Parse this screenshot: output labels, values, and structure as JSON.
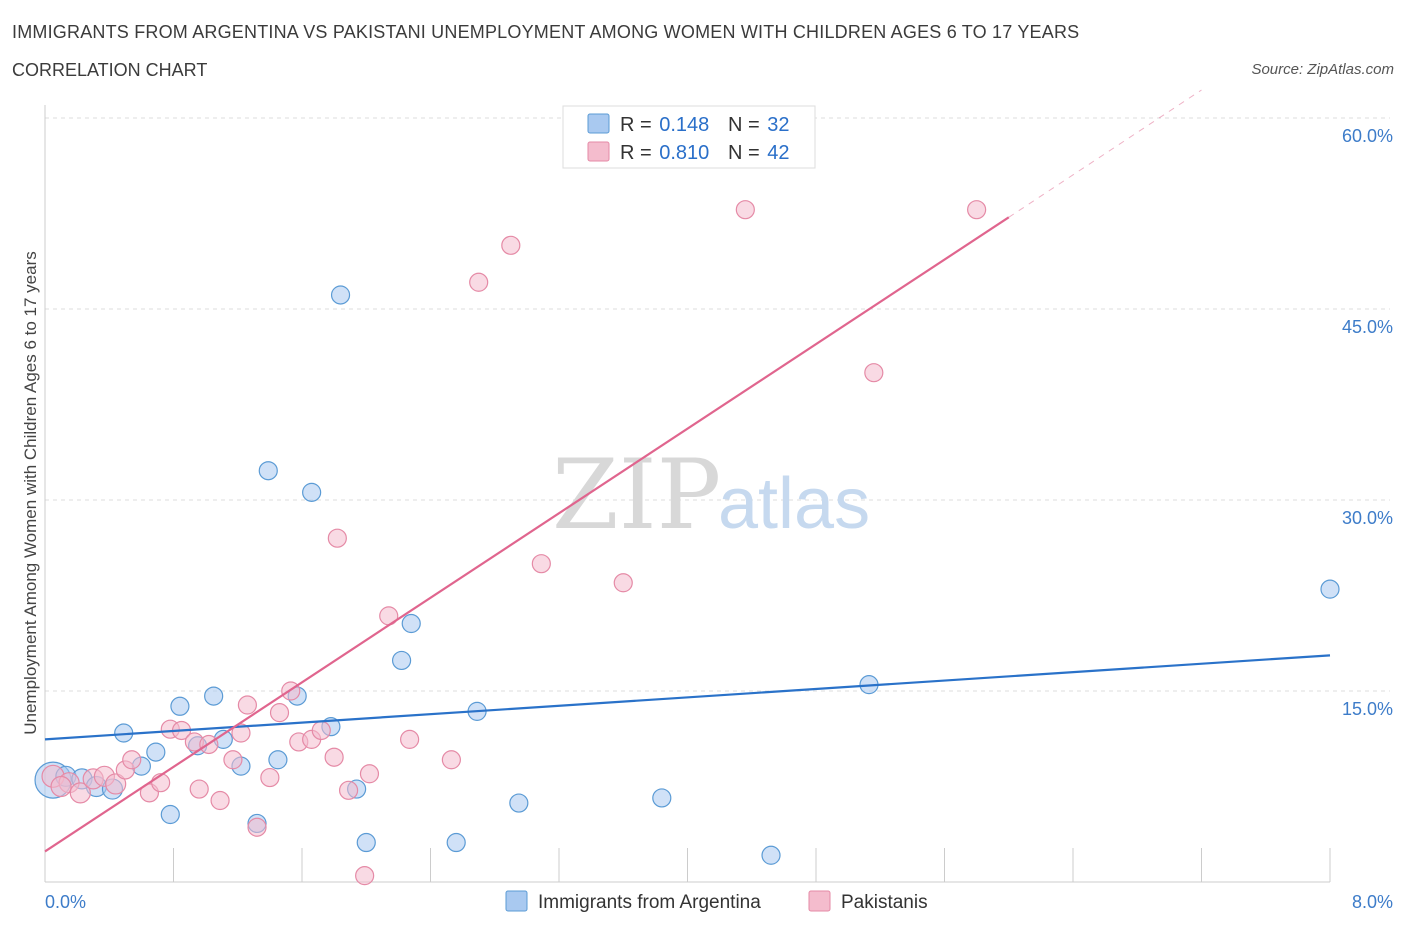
{
  "header": {
    "title": "IMMIGRANTS FROM ARGENTINA VS PAKISTANI UNEMPLOYMENT AMONG WOMEN WITH CHILDREN AGES 6 TO 17 YEARS",
    "subtitle": "CORRELATION CHART",
    "source": "Source: ZipAtlas.com"
  },
  "watermark": {
    "zip": "ZIP",
    "atlas": "atlas"
  },
  "colors": {
    "blue": "#5b9bd5",
    "blue_fill": "#a9c9f0",
    "blue_line": "#2a72c9",
    "pink": "#e58aa6",
    "pink_fill": "#f4bccd",
    "pink_line": "#e0658e",
    "grid": "#dddddd",
    "axis_text": "#3d7cc9"
  },
  "legend": {
    "rows": [
      {
        "r_label": "R = ",
        "r_value": "0.148",
        "n_label": "N = ",
        "n_value": "32"
      },
      {
        "r_label": "R = ",
        "r_value": "0.810",
        "n_label": "N = ",
        "n_value": "42"
      }
    ]
  },
  "chart_data": {
    "type": "scatter",
    "title": "IMMIGRANTS FROM ARGENTINA VS PAKISTANI UNEMPLOYMENT AMONG WOMEN WITH CHILDREN AGES 6 TO 17 YEARS",
    "xlabel": "",
    "ylabel": "Unemployment Among Women with Children Ages 6 to 17 years",
    "xlim": [
      0,
      8
    ],
    "ylim": [
      0,
      60
    ],
    "x_tick_labels": [
      "0.0%",
      "8.0%"
    ],
    "y_ticks": [
      15,
      30,
      45,
      60
    ],
    "y_tick_labels": [
      "15.0%",
      "30.0%",
      "45.0%",
      "60.0%"
    ],
    "grid": true,
    "legend_position": "top-center",
    "series": [
      {
        "name": "Immigrants from Argentina",
        "color": "blue",
        "r": 0.148,
        "n": 32,
        "trend": {
          "x": [
            0,
            8
          ],
          "y": [
            11.2,
            17.8
          ]
        },
        "points": [
          {
            "x": 0.05,
            "y": 8.0,
            "s": 18
          },
          {
            "x": 0.13,
            "y": 8.3,
            "s": 10
          },
          {
            "x": 0.23,
            "y": 8.1,
            "s": 10
          },
          {
            "x": 0.32,
            "y": 7.5,
            "s": 10
          },
          {
            "x": 0.42,
            "y": 7.3,
            "s": 10
          },
          {
            "x": 0.49,
            "y": 11.7,
            "s": 9
          },
          {
            "x": 0.6,
            "y": 9.1,
            "s": 9
          },
          {
            "x": 0.69,
            "y": 10.2,
            "s": 9
          },
          {
            "x": 0.78,
            "y": 5.3,
            "s": 9
          },
          {
            "x": 0.84,
            "y": 13.8,
            "s": 9
          },
          {
            "x": 0.95,
            "y": 10.7,
            "s": 9
          },
          {
            "x": 1.05,
            "y": 14.6,
            "s": 9
          },
          {
            "x": 1.11,
            "y": 11.2,
            "s": 9
          },
          {
            "x": 1.22,
            "y": 9.1,
            "s": 9
          },
          {
            "x": 1.32,
            "y": 4.6,
            "s": 9
          },
          {
            "x": 1.39,
            "y": 32.3,
            "s": 9
          },
          {
            "x": 1.45,
            "y": 9.6,
            "s": 9
          },
          {
            "x": 1.57,
            "y": 14.6,
            "s": 9
          },
          {
            "x": 1.66,
            "y": 30.6,
            "s": 9
          },
          {
            "x": 1.78,
            "y": 12.2,
            "s": 9
          },
          {
            "x": 1.84,
            "y": 46.1,
            "s": 9
          },
          {
            "x": 1.94,
            "y": 7.3,
            "s": 9
          },
          {
            "x": 2.0,
            "y": 3.1,
            "s": 9
          },
          {
            "x": 2.22,
            "y": 17.4,
            "s": 9
          },
          {
            "x": 2.28,
            "y": 20.3,
            "s": 9
          },
          {
            "x": 2.56,
            "y": 3.1,
            "s": 9
          },
          {
            "x": 2.69,
            "y": 13.4,
            "s": 9
          },
          {
            "x": 2.95,
            "y": 6.2,
            "s": 9
          },
          {
            "x": 3.84,
            "y": 6.6,
            "s": 9
          },
          {
            "x": 4.52,
            "y": 2.1,
            "s": 9
          },
          {
            "x": 5.13,
            "y": 15.5,
            "s": 9
          },
          {
            "x": 8.0,
            "y": 23.0,
            "s": 9
          }
        ]
      },
      {
        "name": "Pakistanis",
        "color": "pink",
        "r": 0.81,
        "n": 42,
        "trend": {
          "x": [
            0,
            6.0
          ],
          "y": [
            2.4,
            52.2
          ]
        },
        "trend_dashed": {
          "x": [
            6.0,
            7.2
          ],
          "y": [
            52.2,
            62.2
          ]
        },
        "points": [
          {
            "x": 0.05,
            "y": 8.3,
            "s": 11
          },
          {
            "x": 0.15,
            "y": 7.8,
            "s": 10
          },
          {
            "x": 0.22,
            "y": 7.0,
            "s": 10
          },
          {
            "x": 0.3,
            "y": 8.1,
            "s": 10
          },
          {
            "x": 0.37,
            "y": 8.3,
            "s": 10
          },
          {
            "x": 0.44,
            "y": 7.7,
            "s": 10
          },
          {
            "x": 0.5,
            "y": 8.8,
            "s": 9
          },
          {
            "x": 0.54,
            "y": 9.6,
            "s": 9
          },
          {
            "x": 0.65,
            "y": 7.0,
            "s": 9
          },
          {
            "x": 0.72,
            "y": 7.8,
            "s": 9
          },
          {
            "x": 0.78,
            "y": 12.0,
            "s": 9
          },
          {
            "x": 0.85,
            "y": 11.9,
            "s": 9
          },
          {
            "x": 0.93,
            "y": 11.0,
            "s": 9
          },
          {
            "x": 0.96,
            "y": 7.3,
            "s": 9
          },
          {
            "x": 1.02,
            "y": 10.8,
            "s": 9
          },
          {
            "x": 1.09,
            "y": 6.4,
            "s": 9
          },
          {
            "x": 1.17,
            "y": 9.6,
            "s": 9
          },
          {
            "x": 1.22,
            "y": 11.7,
            "s": 9
          },
          {
            "x": 1.26,
            "y": 13.9,
            "s": 9
          },
          {
            "x": 1.32,
            "y": 4.3,
            "s": 9
          },
          {
            "x": 1.4,
            "y": 8.2,
            "s": 9
          },
          {
            "x": 1.46,
            "y": 13.3,
            "s": 9
          },
          {
            "x": 1.53,
            "y": 15.0,
            "s": 9
          },
          {
            "x": 1.58,
            "y": 11.0,
            "s": 9
          },
          {
            "x": 1.66,
            "y": 11.2,
            "s": 9
          },
          {
            "x": 1.72,
            "y": 11.9,
            "s": 9
          },
          {
            "x": 1.8,
            "y": 9.8,
            "s": 9
          },
          {
            "x": 1.82,
            "y": 27.0,
            "s": 9
          },
          {
            "x": 1.89,
            "y": 7.2,
            "s": 9
          },
          {
            "x": 1.99,
            "y": 0.5,
            "s": 9
          },
          {
            "x": 2.02,
            "y": 8.5,
            "s": 9
          },
          {
            "x": 2.14,
            "y": 20.9,
            "s": 9
          },
          {
            "x": 2.27,
            "y": 11.2,
            "s": 9
          },
          {
            "x": 2.53,
            "y": 9.6,
            "s": 9
          },
          {
            "x": 2.7,
            "y": 47.1,
            "s": 9
          },
          {
            "x": 2.9,
            "y": 50.0,
            "s": 9
          },
          {
            "x": 3.09,
            "y": 25.0,
            "s": 9
          },
          {
            "x": 3.6,
            "y": 23.5,
            "s": 9
          },
          {
            "x": 4.36,
            "y": 52.8,
            "s": 9
          },
          {
            "x": 5.16,
            "y": 40.0,
            "s": 9
          },
          {
            "x": 5.8,
            "y": 52.8,
            "s": 9
          },
          {
            "x": 0.1,
            "y": 7.5,
            "s": 10
          }
        ]
      }
    ]
  },
  "bottom_legend": {
    "items": [
      {
        "label": "Immigrants from Argentina",
        "color": "blue"
      },
      {
        "label": "Pakistanis",
        "color": "pink"
      }
    ]
  }
}
